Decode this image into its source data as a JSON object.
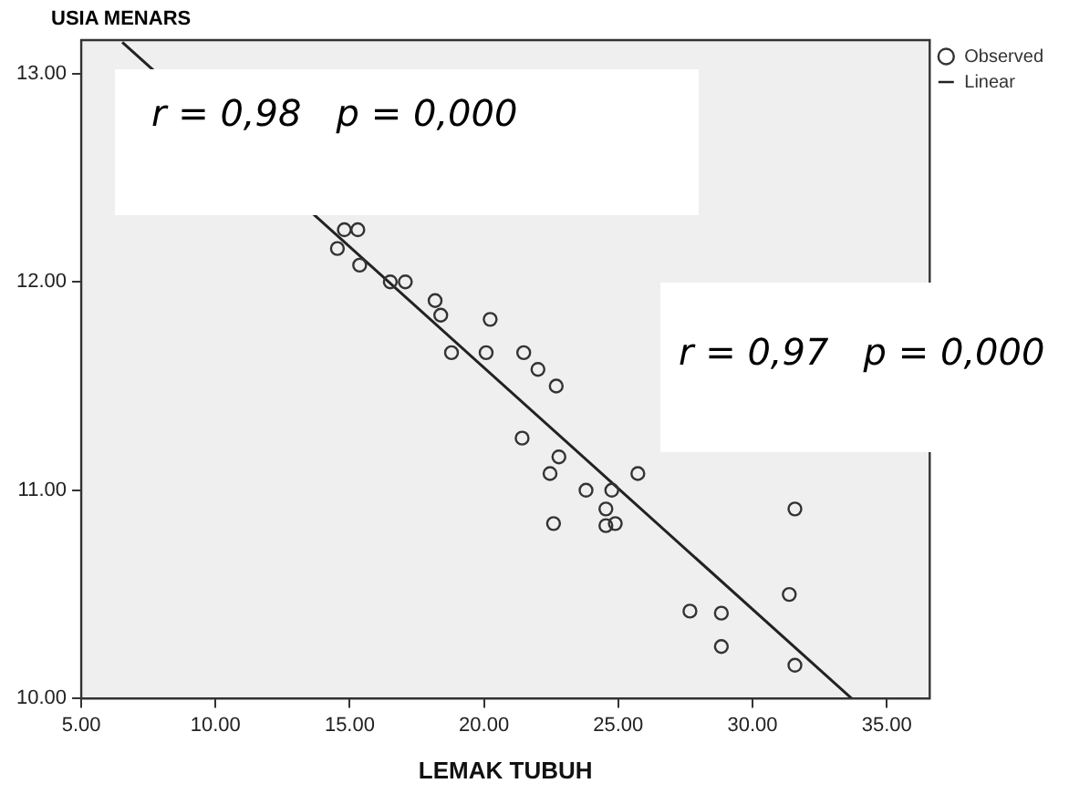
{
  "chart_data": {
    "type": "scatter",
    "ylabel": "USIA MENARS",
    "xlabel": "LEMAK TUBUH",
    "xlim": [
      5,
      36.6
    ],
    "ylim": [
      10,
      13.16
    ],
    "xticks": [
      {
        "value": 5,
        "label": "5.00"
      },
      {
        "value": 10,
        "label": "10.00"
      },
      {
        "value": 15,
        "label": "15.00"
      },
      {
        "value": 20,
        "label": "20.00"
      },
      {
        "value": 25,
        "label": "25.00"
      },
      {
        "value": 30,
        "label": "30.00"
      },
      {
        "value": 35,
        "label": "35.00"
      }
    ],
    "yticks": [
      {
        "value": 10,
        "label": "10.00"
      },
      {
        "value": 11,
        "label": "11.00"
      },
      {
        "value": 12,
        "label": "12.00"
      },
      {
        "value": 13,
        "label": "13.00"
      }
    ],
    "grid": false,
    "legend": "top right",
    "marker": "circle",
    "series": [
      {
        "name": "Observed",
        "type": "scatter",
        "color": "#333333",
        "x": [
          14.8,
          15.3,
          14.54,
          15.37,
          16.51,
          17.07,
          18.18,
          18.39,
          20.23,
          18.79,
          20.08,
          21.48,
          22.01,
          22.69,
          21.42,
          22.79,
          22.46,
          25.73,
          23.8,
          24.76,
          24.54,
          31.58,
          22.59,
          24.54,
          24.89,
          31.37,
          27.67,
          28.84,
          28.84,
          31.58
        ],
        "values": [
          12.25,
          12.25,
          12.16,
          12.08,
          12.0,
          12.0,
          11.91,
          11.84,
          11.82,
          11.66,
          11.66,
          11.66,
          11.58,
          11.5,
          11.25,
          11.16,
          11.08,
          11.08,
          11.0,
          11.0,
          10.91,
          10.91,
          10.84,
          10.83,
          10.84,
          10.5,
          10.42,
          10.41,
          10.25,
          10.16
        ]
      },
      {
        "name": "Linear",
        "type": "line",
        "color": "#222222",
        "marker": "none",
        "x": [
          6.53,
          33.7
        ],
        "values": [
          13.15,
          10.0
        ]
      }
    ],
    "annotations": [
      "r = 0,98   p = 0,000",
      "r = 0,97   p = 0,000"
    ]
  }
}
